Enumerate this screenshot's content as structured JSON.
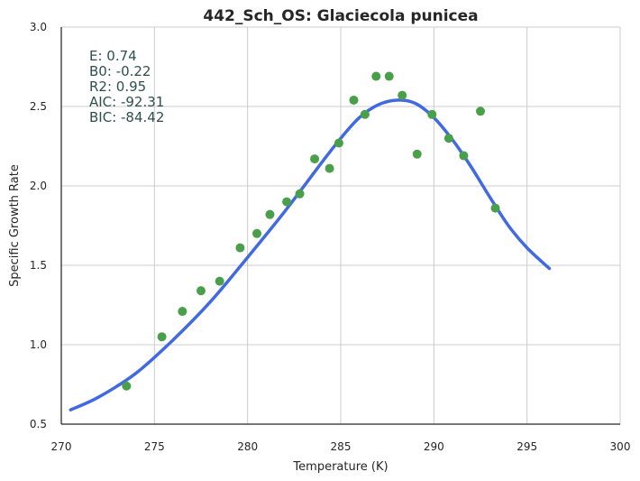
{
  "chart_data": {
    "type": "scatter",
    "title": "442_Sch_OS: Glaciecola punicea",
    "xlabel": "Temperature (K)",
    "ylabel": "Specific Growth Rate",
    "xlim": [
      270,
      300
    ],
    "ylim": [
      0.5,
      3.0
    ],
    "xticks": [
      "270",
      "275",
      "280",
      "285",
      "290",
      "295",
      "300"
    ],
    "yticks": [
      "0.5",
      "1.0",
      "1.5",
      "2.0",
      "2.5",
      "3.0"
    ],
    "grid": true,
    "annotations": [
      "E:  0.74",
      "B0:  -0.22",
      "R2:  0.95",
      "AIC: -92.31",
      "BIC: -84.42"
    ],
    "series": [
      {
        "type": "scatter",
        "color": "#4aa04a",
        "x": [
          273.5,
          275.4,
          276.5,
          277.5,
          278.5,
          279.6,
          280.5,
          281.2,
          282.1,
          282.8,
          283.6,
          284.4,
          284.9,
          285.7,
          286.3,
          286.9,
          287.6,
          288.3,
          289.1,
          289.9,
          290.8,
          291.6,
          292.5,
          293.3
        ],
        "y": [
          0.74,
          1.05,
          1.21,
          1.34,
          1.4,
          1.61,
          1.7,
          1.82,
          1.9,
          1.95,
          2.17,
          2.11,
          2.27,
          2.54,
          2.45,
          2.69,
          2.69,
          2.57,
          2.2,
          2.45,
          2.3,
          2.19,
          2.47,
          1.86
        ]
      },
      {
        "type": "line",
        "color": "#4169e1",
        "x": [
          270.5,
          272,
          274,
          276,
          278,
          280,
          282,
          284,
          285,
          286,
          287,
          288,
          289,
          290,
          291,
          292,
          293,
          294,
          295,
          296.2
        ],
        "y": [
          0.59,
          0.67,
          0.82,
          1.03,
          1.27,
          1.55,
          1.84,
          2.15,
          2.3,
          2.43,
          2.51,
          2.54,
          2.52,
          2.43,
          2.29,
          2.12,
          1.93,
          1.75,
          1.61,
          1.48
        ]
      }
    ]
  }
}
